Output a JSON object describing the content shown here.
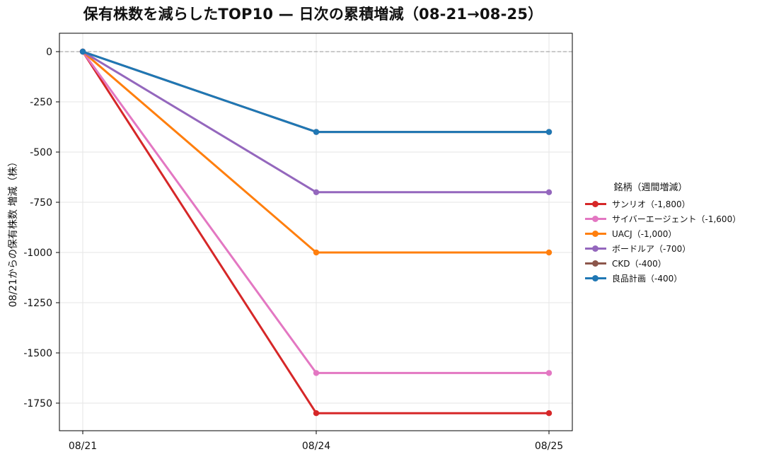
{
  "chart_data": {
    "type": "line",
    "title": "保有株数を減らしたTOP10 — 日次の累積増減（08-21→08-25）",
    "xlabel": "",
    "ylabel": "08/21からの保有株数 増減（株）",
    "x": [
      "08/21",
      "08/24",
      "08/25"
    ],
    "ylim": [
      -1900,
      90
    ],
    "yticks": [
      0,
      -250,
      -500,
      -750,
      -1000,
      -1250,
      -1500,
      -1750
    ],
    "ytick_labels": [
      "0",
      "-250",
      "-500",
      "-750",
      "-1000",
      "-1250",
      "-1500",
      "-1750"
    ],
    "grid": true,
    "reference_line": 0,
    "legend_title": "銘柄（週間増減）",
    "legend_position": "right",
    "series": [
      {
        "name": "サンリオ（-1,800）",
        "color": "#d62728",
        "values": [
          0,
          -1800,
          -1800
        ]
      },
      {
        "name": "サイバーエージェント（-1,600）",
        "color": "#e377c2",
        "values": [
          0,
          -1600,
          -1600
        ]
      },
      {
        "name": "UACJ（-1,000）",
        "color": "#ff7f0e",
        "values": [
          0,
          -1000,
          -1000
        ]
      },
      {
        "name": "ボードルア（-700）",
        "color": "#9467bd",
        "values": [
          0,
          -700,
          -700
        ]
      },
      {
        "name": "CKD（-400）",
        "color": "#8c564b",
        "values": [
          0,
          -400,
          -400
        ]
      },
      {
        "name": "良品計画（-400）",
        "color": "#1f77b4",
        "values": [
          0,
          -400,
          -400
        ]
      }
    ]
  }
}
